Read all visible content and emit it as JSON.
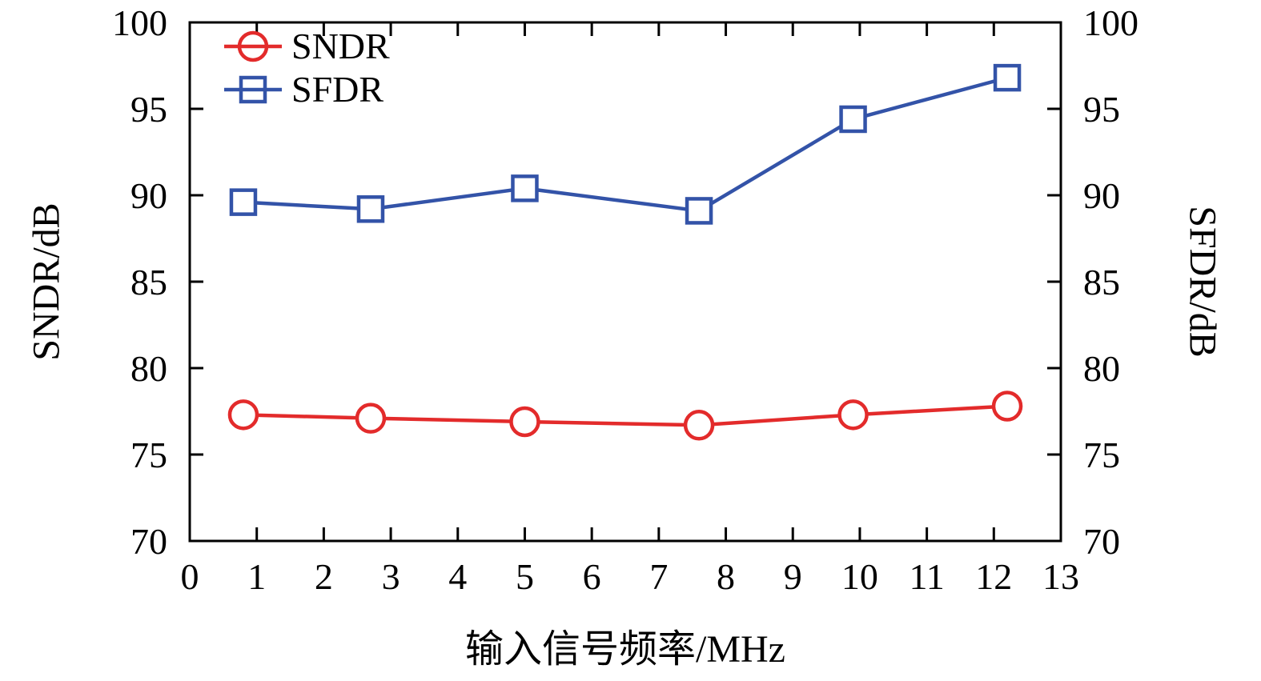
{
  "chart_data": {
    "type": "line",
    "title": "",
    "xlabel": "输入信号频率/MHz",
    "ylabel_left": "SNDR/dB",
    "ylabel_right": "SFDR/dB",
    "xlim": [
      0,
      13
    ],
    "ylim_left": [
      70,
      100
    ],
    "ylim_right": [
      70,
      100
    ],
    "x_ticks": [
      0,
      1,
      2,
      3,
      4,
      5,
      6,
      7,
      8,
      9,
      10,
      11,
      12,
      13
    ],
    "y_ticks": [
      70,
      75,
      80,
      85,
      90,
      95,
      100
    ],
    "grid": false,
    "legend_position": "top-left",
    "axis_color": "#000000",
    "series": [
      {
        "name": "SNDR",
        "axis": "left",
        "color": "#e32b2b",
        "marker": "circle",
        "x": [
          0.8,
          2.7,
          5.0,
          7.6,
          9.9,
          12.2
        ],
        "y": [
          77.3,
          77.1,
          76.9,
          76.7,
          77.3,
          77.8
        ]
      },
      {
        "name": "SFDR",
        "axis": "right",
        "color": "#3353a8",
        "marker": "square",
        "x": [
          0.8,
          2.7,
          5.0,
          7.6,
          9.9,
          12.2
        ],
        "y": [
          89.6,
          89.2,
          90.4,
          89.1,
          94.4,
          96.8
        ]
      }
    ]
  }
}
